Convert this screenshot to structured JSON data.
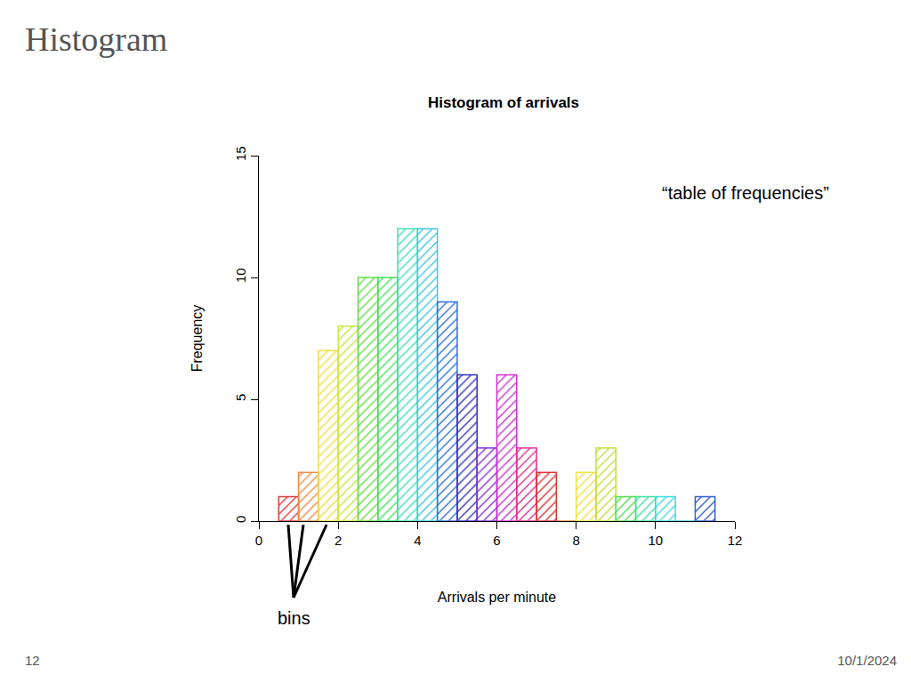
{
  "slide": {
    "title": "Histogram",
    "page": "12",
    "date": "10/1/2024"
  },
  "chart_data": {
    "type": "histogram",
    "title": "Histogram of arrivals",
    "x_label": "Arrivals per minute",
    "y_label": "Frequency",
    "bins": [
      0.5,
      1,
      1.5,
      2,
      2.5,
      3,
      3.5,
      4,
      4.5,
      5,
      5.5,
      6,
      6.5,
      7,
      7.5,
      8,
      8.5,
      9,
      9.5,
      10,
      10.5,
      11,
      11.5
    ],
    "values": [
      1,
      2,
      7,
      8,
      10,
      10,
      12,
      12,
      9,
      6,
      3,
      6,
      3,
      2,
      0,
      2,
      3,
      1,
      1,
      1,
      0,
      1
    ],
    "colors": [
      "#e03a3a",
      "#f08a40",
      "#f0e040",
      "#c8e840",
      "#60e040",
      "#40e060",
      "#40e0b0",
      "#40c8e0",
      "#3070d8",
      "#3030c0",
      "#8030d0",
      "#d030d0",
      "#e03090",
      "#e03030",
      "#f08030",
      "#f0e040",
      "#c0e040",
      "#50e050",
      "#40e0a0",
      "#40d8e0",
      "#40c0e0",
      "#3060d0"
    ],
    "xlim": [
      0,
      12
    ],
    "xticks": [
      0,
      2,
      4,
      6,
      8,
      10,
      12
    ],
    "ylim": [
      0,
      15
    ],
    "yticks": [
      0,
      5,
      10,
      15
    ],
    "grid": false,
    "annotations": [
      "“table of frequencies”",
      "bins"
    ]
  }
}
